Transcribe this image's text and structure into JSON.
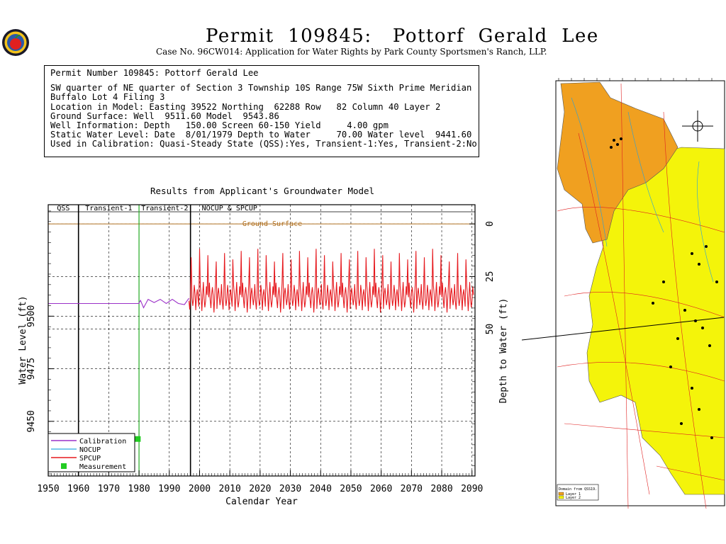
{
  "header": {
    "title": "Permit  109845:   Pottorf  Gerald  Lee",
    "subtitle": "Case No. 96CW014: Application for Water Rights by Park County Sportsmen's Ranch, LLP."
  },
  "info": {
    "line1": "Permit Number 109845: Pottorf Gerald Lee",
    "line2": "SW quarter of NE quarter of Section 3 Township 10S Range 75W Sixth Prime Meridian",
    "line3": "Buffalo Lot 4 Filing 3",
    "line4": "Location in Model: Easting 39522 Northing  62288 Row   82 Column 40 Layer 2",
    "line5": "Ground Surface: Well  9511.60 Model  9543.86",
    "line6": "Well Information: Depth   150.00 Screen 60-150 Yield     4.00 gpm",
    "line7": "Static Water Level: Date  8/01/1979 Depth to Water     70.00 Water level  9441.60",
    "line8": "Used in Calibration: Quasi-Steady State (QSS):Yes, Transient-1:Yes, Transient-2:No"
  },
  "chart_data": {
    "type": "line",
    "title": "Results from Applicant's Groundwater Model",
    "xlabel": "Calendar Year",
    "ylabel": "Water Level (ft)",
    "y2label": "Depth to Water (ft)",
    "xlim": [
      1950,
      2091
    ],
    "ylim": [
      9424,
      9553
    ],
    "xticks": [
      1950,
      1960,
      1970,
      1980,
      1990,
      2000,
      2010,
      2020,
      2030,
      2040,
      2050,
      2060,
      2070,
      2080,
      2090
    ],
    "yticks": [
      9450,
      9475,
      9500
    ],
    "y2ticks": [
      0,
      25,
      50
    ],
    "ground_surface_elevation": 9543.86,
    "ground_surface_label": "Ground Surface",
    "grid": true,
    "periods": [
      {
        "label": "QSS",
        "start": 1950,
        "end": 1960
      },
      {
        "label": "Transient-1",
        "start": 1960,
        "end": 1980
      },
      {
        "label": "Transient-2",
        "start": 1980,
        "end": 1997
      },
      {
        "label": "NOCUP  &  SPCUP",
        "start": 1997,
        "end": 2091
      }
    ],
    "series": [
      {
        "name": "Calibration",
        "color": "#9b30c8",
        "x": [
          1950,
          1979.9,
          1980.5,
          1981.5,
          1983,
          1985,
          1987,
          1989,
          1991,
          1993,
          1995,
          1996.5
        ],
        "y": [
          9506,
          9506,
          9507.5,
          9504,
          9508,
          9506.5,
          9508,
          9506,
          9508,
          9506,
          9505.5,
          9508.5
        ]
      },
      {
        "name": "NOCUP",
        "color": "#4fb8e6",
        "x": [],
        "y": []
      },
      {
        "name": "SPCUP",
        "color": "#e6191e",
        "generator": {
          "start": 1996.5,
          "end": 2090.5,
          "step": 0.25,
          "base": 9509,
          "amplitude": 5.5,
          "peak": 9532
        }
      },
      {
        "name": "Measurement",
        "color": "#22cc22",
        "marker": "square",
        "x": [
          1979.6
        ],
        "y": [
          9441.6
        ]
      }
    ],
    "legend": {
      "position": "bottom-left"
    }
  },
  "map": {
    "legend_title": "Domain from QSS19.",
    "legend_layer1": "Layer 1",
    "legend_layer2": "Layer 2",
    "colors": {
      "layer1": "#f0a020",
      "layer2": "#f4f40a"
    }
  }
}
